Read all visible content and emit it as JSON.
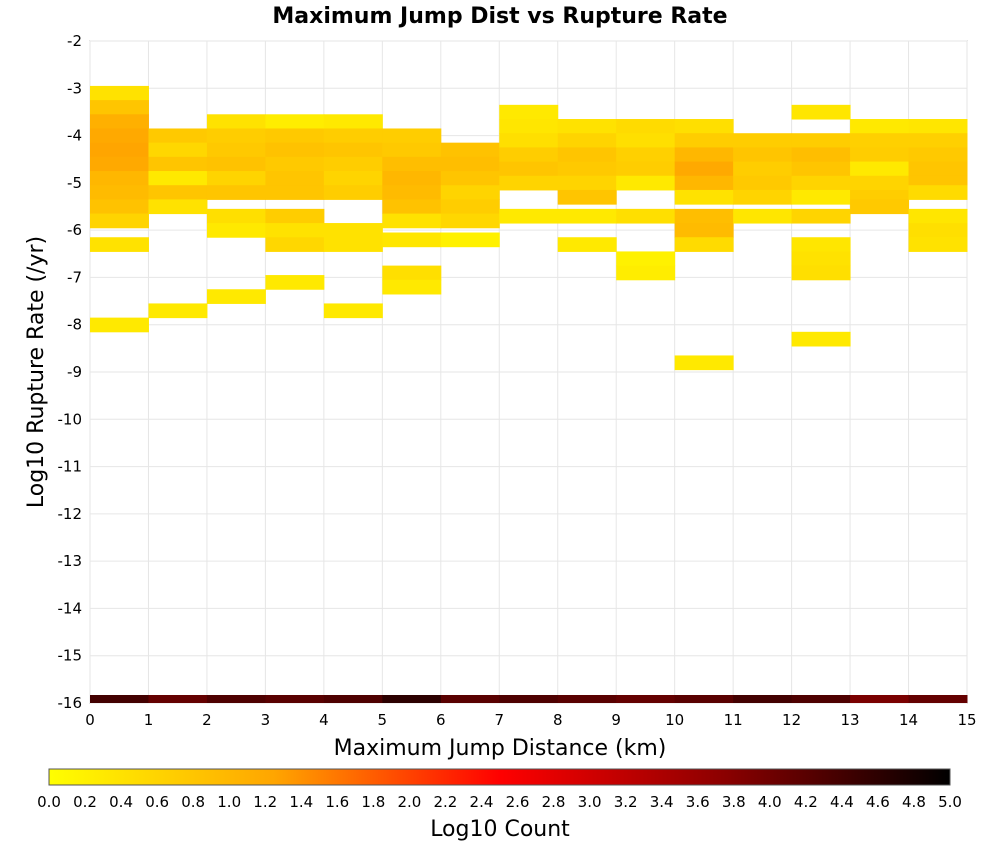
{
  "chart_data": {
    "type": "heatmap",
    "title": "Maximum Jump Dist vs Rupture Rate",
    "xlabel": "Maximum Jump Distance (km)",
    "ylabel": "Log10 Rupture Rate (/yr)",
    "xlim": [
      0,
      15
    ],
    "ylim": [
      -16,
      -2
    ],
    "x_ticks": [
      "0",
      "1",
      "2",
      "3",
      "4",
      "5",
      "6",
      "7",
      "8",
      "9",
      "10",
      "11",
      "12",
      "13",
      "14",
      "15"
    ],
    "y_ticks": [
      "-2",
      "-3",
      "-4",
      "-5",
      "-6",
      "-7",
      "-8",
      "-9",
      "-10",
      "-11",
      "-12",
      "-13",
      "-14",
      "-15",
      "-16"
    ],
    "grid": true,
    "colorbar": {
      "label": "Log10 Count",
      "range": [
        0,
        5
      ],
      "ticks": [
        "0.0",
        "0.2",
        "0.4",
        "0.6",
        "0.8",
        "1.0",
        "1.2",
        "1.4",
        "1.6",
        "1.8",
        "2.0",
        "2.2",
        "2.4",
        "2.6",
        "2.8",
        "3.0",
        "3.2",
        "3.4",
        "3.6",
        "3.8",
        "4.0",
        "4.2",
        "4.4",
        "4.6",
        "4.8",
        "5.0"
      ],
      "colors": [
        "#ffff00",
        "#ffa500",
        "#ff0000",
        "#8b0000",
        "#000000"
      ]
    },
    "cells": [
      {
        "x": 0,
        "y": -3.1,
        "v": 0.4
      },
      {
        "x": 0,
        "y": -3.4,
        "v": 0.8
      },
      {
        "x": 0,
        "y": -3.7,
        "v": 1.1
      },
      {
        "x": 0,
        "y": -4.0,
        "v": 1.2
      },
      {
        "x": 0,
        "y": -4.3,
        "v": 1.25
      },
      {
        "x": 0,
        "y": -4.6,
        "v": 1.2
      },
      {
        "x": 0,
        "y": -4.9,
        "v": 1.0
      },
      {
        "x": 0,
        "y": -5.2,
        "v": 0.95
      },
      {
        "x": 0,
        "y": -5.5,
        "v": 0.85
      },
      {
        "x": 0,
        "y": -5.8,
        "v": 0.6
      },
      {
        "x": 0,
        "y": -6.3,
        "v": 0.4
      },
      {
        "x": 0,
        "y": -8.0,
        "v": 0.3
      },
      {
        "x": 1,
        "y": -4.0,
        "v": 0.75
      },
      {
        "x": 1,
        "y": -4.3,
        "v": 0.55
      },
      {
        "x": 1,
        "y": -4.6,
        "v": 0.8
      },
      {
        "x": 1,
        "y": -4.9,
        "v": 0.3
      },
      {
        "x": 1,
        "y": -5.2,
        "v": 0.8
      },
      {
        "x": 1,
        "y": -5.5,
        "v": 0.4
      },
      {
        "x": 1,
        "y": -7.7,
        "v": 0.3
      },
      {
        "x": 2,
        "y": -3.7,
        "v": 0.4
      },
      {
        "x": 2,
        "y": -4.0,
        "v": 0.7
      },
      {
        "x": 2,
        "y": -4.3,
        "v": 0.75
      },
      {
        "x": 2,
        "y": -4.6,
        "v": 0.85
      },
      {
        "x": 2,
        "y": -4.9,
        "v": 0.6
      },
      {
        "x": 2,
        "y": -5.2,
        "v": 0.8
      },
      {
        "x": 2,
        "y": -5.7,
        "v": 0.45
      },
      {
        "x": 2,
        "y": -6.0,
        "v": 0.3
      },
      {
        "x": 2,
        "y": -7.4,
        "v": 0.3
      },
      {
        "x": 3,
        "y": -3.7,
        "v": 0.25
      },
      {
        "x": 3,
        "y": -4.0,
        "v": 0.75
      },
      {
        "x": 3,
        "y": -4.3,
        "v": 0.85
      },
      {
        "x": 3,
        "y": -4.6,
        "v": 0.75
      },
      {
        "x": 3,
        "y": -4.9,
        "v": 0.8
      },
      {
        "x": 3,
        "y": -5.2,
        "v": 0.8
      },
      {
        "x": 3,
        "y": -5.7,
        "v": 0.7
      },
      {
        "x": 3,
        "y": -6.0,
        "v": 0.4
      },
      {
        "x": 3,
        "y": -6.3,
        "v": 0.55
      },
      {
        "x": 3,
        "y": -7.1,
        "v": 0.3
      },
      {
        "x": 4,
        "y": -3.7,
        "v": 0.3
      },
      {
        "x": 4,
        "y": -4.0,
        "v": 0.7
      },
      {
        "x": 4,
        "y": -4.3,
        "v": 0.8
      },
      {
        "x": 4,
        "y": -4.6,
        "v": 0.7
      },
      {
        "x": 4,
        "y": -4.9,
        "v": 0.6
      },
      {
        "x": 4,
        "y": -5.2,
        "v": 0.7
      },
      {
        "x": 4,
        "y": -6.0,
        "v": 0.4
      },
      {
        "x": 4,
        "y": -6.3,
        "v": 0.4
      },
      {
        "x": 4,
        "y": -7.7,
        "v": 0.3
      },
      {
        "x": 5,
        "y": -4.0,
        "v": 0.7
      },
      {
        "x": 5,
        "y": -4.3,
        "v": 0.75
      },
      {
        "x": 5,
        "y": -4.6,
        "v": 0.9
      },
      {
        "x": 5,
        "y": -4.9,
        "v": 1.0
      },
      {
        "x": 5,
        "y": -5.2,
        "v": 0.95
      },
      {
        "x": 5,
        "y": -5.5,
        "v": 0.85
      },
      {
        "x": 5,
        "y": -5.8,
        "v": 0.4
      },
      {
        "x": 5,
        "y": -6.2,
        "v": 0.35
      },
      {
        "x": 5,
        "y": -6.9,
        "v": 0.45
      },
      {
        "x": 5,
        "y": -7.2,
        "v": 0.3
      },
      {
        "x": 6,
        "y": -4.3,
        "v": 0.85
      },
      {
        "x": 6,
        "y": -4.6,
        "v": 0.9
      },
      {
        "x": 6,
        "y": -4.9,
        "v": 0.8
      },
      {
        "x": 6,
        "y": -5.2,
        "v": 0.6
      },
      {
        "x": 6,
        "y": -5.5,
        "v": 0.7
      },
      {
        "x": 6,
        "y": -5.8,
        "v": 0.55
      },
      {
        "x": 6,
        "y": -6.2,
        "v": 0.2
      },
      {
        "x": 7,
        "y": -3.5,
        "v": 0.3
      },
      {
        "x": 7,
        "y": -3.8,
        "v": 0.35
      },
      {
        "x": 7,
        "y": -4.1,
        "v": 0.45
      },
      {
        "x": 7,
        "y": -4.4,
        "v": 0.7
      },
      {
        "x": 7,
        "y": -4.7,
        "v": 0.8
      },
      {
        "x": 7,
        "y": -5.0,
        "v": 0.6
      },
      {
        "x": 7,
        "y": -5.7,
        "v": 0.3
      },
      {
        "x": 8,
        "y": -3.8,
        "v": 0.4
      },
      {
        "x": 8,
        "y": -4.1,
        "v": 0.6
      },
      {
        "x": 8,
        "y": -4.4,
        "v": 0.8
      },
      {
        "x": 8,
        "y": -4.7,
        "v": 0.75
      },
      {
        "x": 8,
        "y": -5.0,
        "v": 0.6
      },
      {
        "x": 8,
        "y": -5.3,
        "v": 0.8
      },
      {
        "x": 8,
        "y": -5.7,
        "v": 0.3
      },
      {
        "x": 8,
        "y": -6.3,
        "v": 0.3
      },
      {
        "x": 9,
        "y": -3.8,
        "v": 0.5
      },
      {
        "x": 9,
        "y": -4.1,
        "v": 0.45
      },
      {
        "x": 9,
        "y": -4.4,
        "v": 0.65
      },
      {
        "x": 9,
        "y": -4.7,
        "v": 0.7
      },
      {
        "x": 9,
        "y": -5.0,
        "v": 0.3
      },
      {
        "x": 9,
        "y": -5.7,
        "v": 0.45
      },
      {
        "x": 9,
        "y": -6.6,
        "v": 0.2
      },
      {
        "x": 9,
        "y": -6.9,
        "v": 0.25
      },
      {
        "x": 10,
        "y": -3.8,
        "v": 0.45
      },
      {
        "x": 10,
        "y": -4.1,
        "v": 0.7
      },
      {
        "x": 10,
        "y": -4.4,
        "v": 1.0
      },
      {
        "x": 10,
        "y": -4.7,
        "v": 1.2
      },
      {
        "x": 10,
        "y": -5.0,
        "v": 1.0
      },
      {
        "x": 10,
        "y": -5.3,
        "v": 0.4
      },
      {
        "x": 10,
        "y": -5.7,
        "v": 0.9
      },
      {
        "x": 10,
        "y": -6.0,
        "v": 0.95
      },
      {
        "x": 10,
        "y": -6.3,
        "v": 0.5
      },
      {
        "x": 10,
        "y": -8.8,
        "v": 0.3
      },
      {
        "x": 11,
        "y": -4.1,
        "v": 0.7
      },
      {
        "x": 11,
        "y": -4.4,
        "v": 0.8
      },
      {
        "x": 11,
        "y": -4.7,
        "v": 0.7
      },
      {
        "x": 11,
        "y": -5.0,
        "v": 0.75
      },
      {
        "x": 11,
        "y": -5.3,
        "v": 0.6
      },
      {
        "x": 11,
        "y": -5.7,
        "v": 0.35
      },
      {
        "x": 12,
        "y": -3.5,
        "v": 0.35
      },
      {
        "x": 12,
        "y": -4.1,
        "v": 0.7
      },
      {
        "x": 12,
        "y": -4.4,
        "v": 0.9
      },
      {
        "x": 12,
        "y": -4.7,
        "v": 0.8
      },
      {
        "x": 12,
        "y": -5.0,
        "v": 0.6
      },
      {
        "x": 12,
        "y": -5.3,
        "v": 0.3
      },
      {
        "x": 12,
        "y": -5.7,
        "v": 0.6
      },
      {
        "x": 12,
        "y": -6.3,
        "v": 0.35
      },
      {
        "x": 12,
        "y": -6.6,
        "v": 0.4
      },
      {
        "x": 12,
        "y": -6.9,
        "v": 0.45
      },
      {
        "x": 12,
        "y": -8.3,
        "v": 0.3
      },
      {
        "x": 13,
        "y": -3.8,
        "v": 0.3
      },
      {
        "x": 13,
        "y": -4.1,
        "v": 0.65
      },
      {
        "x": 13,
        "y": -4.4,
        "v": 0.7
      },
      {
        "x": 13,
        "y": -4.7,
        "v": 0.3
      },
      {
        "x": 13,
        "y": -5.0,
        "v": 0.6
      },
      {
        "x": 13,
        "y": -5.3,
        "v": 0.7
      },
      {
        "x": 13,
        "y": -5.5,
        "v": 0.75
      },
      {
        "x": 14,
        "y": -3.8,
        "v": 0.35
      },
      {
        "x": 14,
        "y": -4.1,
        "v": 0.65
      },
      {
        "x": 14,
        "y": -4.4,
        "v": 0.75
      },
      {
        "x": 14,
        "y": -4.7,
        "v": 0.8
      },
      {
        "x": 14,
        "y": -5.0,
        "v": 0.8
      },
      {
        "x": 14,
        "y": -5.2,
        "v": 0.5
      },
      {
        "x": 14,
        "y": -5.7,
        "v": 0.35
      },
      {
        "x": 14,
        "y": -6.0,
        "v": 0.45
      },
      {
        "x": 14,
        "y": -6.3,
        "v": 0.4
      }
    ],
    "bottom_row": {
      "y": -16,
      "values": [
        4.4,
        4.1,
        4.3,
        4.2,
        4.3,
        4.6,
        4.2,
        4.3,
        4.2,
        4.1,
        4.2,
        4.4,
        4.3,
        3.9,
        4.1
      ]
    }
  }
}
